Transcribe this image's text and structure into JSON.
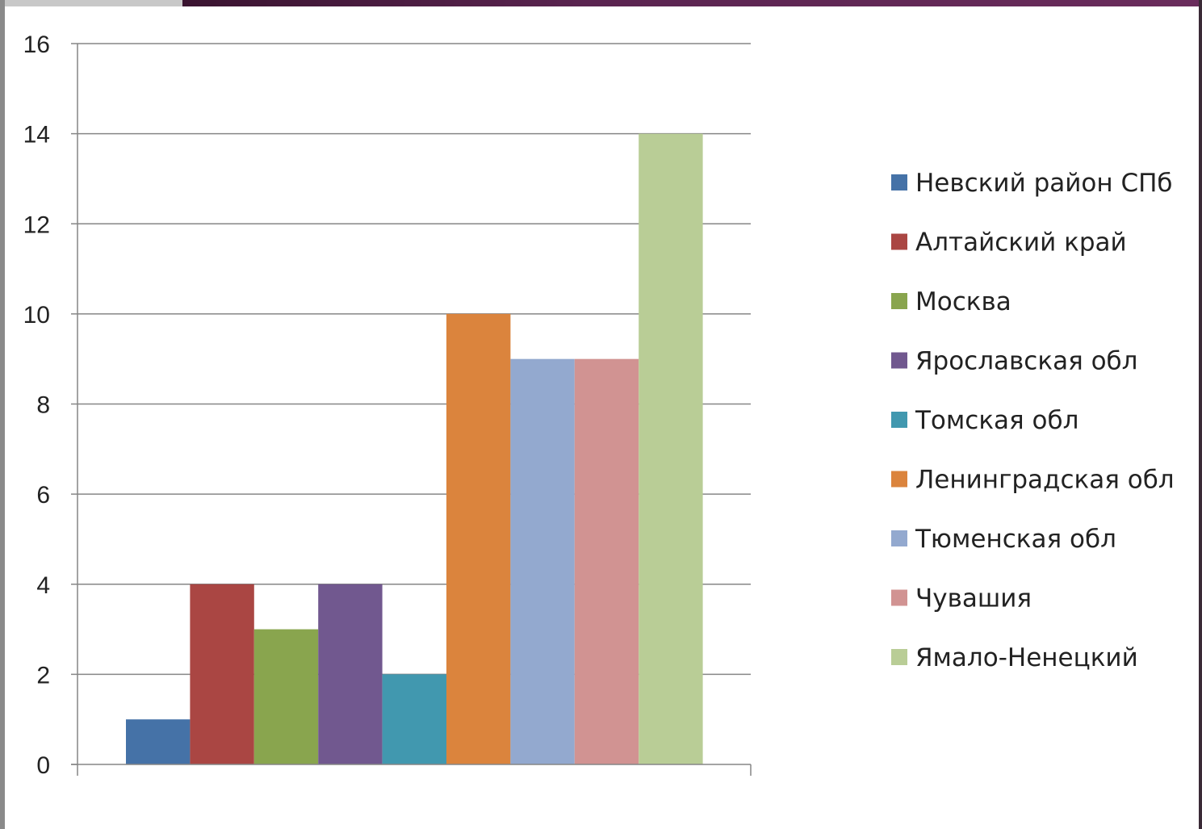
{
  "chart_data": {
    "type": "bar",
    "title": "",
    "xlabel": "",
    "ylabel": "",
    "ylim": [
      0,
      16
    ],
    "yticks": [
      0,
      2,
      4,
      6,
      8,
      10,
      12,
      14,
      16
    ],
    "grid": true,
    "legend_position": "right",
    "series": [
      {
        "name": "Невский район СПб",
        "value": 1,
        "color": "#4572a7"
      },
      {
        "name": "Алтайский край",
        "value": 4,
        "color": "#aa4643"
      },
      {
        "name": "Москва",
        "value": 3,
        "color": "#89a54e"
      },
      {
        "name": "Ярославская обл",
        "value": 4,
        "color": "#71588f"
      },
      {
        "name": "Томская обл",
        "value": 2,
        "color": "#4198af"
      },
      {
        "name": "Ленинградская обл",
        "value": 10,
        "color": "#db843d"
      },
      {
        "name": "Тюменская обл",
        "value": 9,
        "color": "#93a9cf"
      },
      {
        "name": "Чувашия",
        "value": 9,
        "color": "#d19392"
      },
      {
        "name": "Ямало-Ненецкий",
        "value": 14,
        "color": "#b9cd96"
      }
    ]
  }
}
